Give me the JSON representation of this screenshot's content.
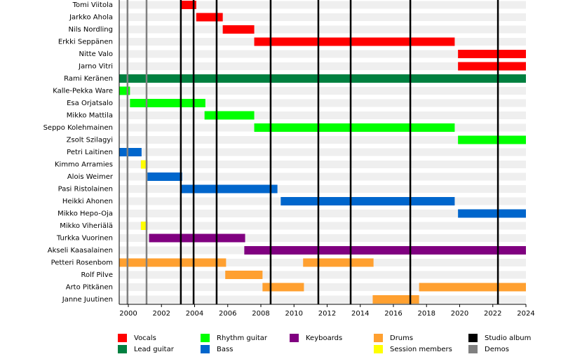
{
  "chart_data": {
    "type": "timeline",
    "categories": [
      "Tomi Viitola",
      "Jarkko Ahola",
      "Nils Nordling",
      "Erkki Seppänen",
      "Nitte Valo",
      "Jarno Vitri",
      "Rami Keränen",
      "Kalle-Pekka Ware",
      "Esa Orjatsalo",
      "Mikko Mattila",
      "Seppo Kolehmainen",
      "Zsolt Szilagyi",
      "Petri Laitinen",
      "Kimmo Arramies",
      "Alois Weimer",
      "Pasi Ristolainen",
      "Heikki Ahonen",
      "Mikko Hepo-Oja",
      "Mikko Viheriälä",
      "Turkka Vuorinen",
      "Akseli Kaasalainen",
      "Petteri Rosenbom",
      "Rolf Pilve",
      "Arto Pitkänen",
      "Janne Juutinen"
    ],
    "series": [
      {
        "name": "Vocals",
        "color": "#ff0000",
        "values": [
          [
            [
              2003.2,
              2004.1
            ]
          ],
          [
            [
              2004.1,
              2005.7
            ]
          ],
          [
            [
              2005.7,
              2007.6
            ]
          ],
          [
            [
              2007.6,
              2019.7
            ]
          ],
          [
            [
              2019.9,
              2024
            ]
          ],
          [
            [
              2019.9,
              2024
            ]
          ],
          [
            [
              1999.45,
              2003.2
            ]
          ],
          null,
          null,
          null,
          null,
          null,
          null,
          null,
          null,
          null,
          null,
          null,
          null,
          null,
          null,
          null,
          null,
          null,
          null
        ]
      },
      {
        "name": "Lead guitar",
        "color": "#008040",
        "values": [
          null,
          null,
          null,
          null,
          null,
          null,
          [
            [
              1999.45,
              2024
            ]
          ],
          null,
          null,
          null,
          null,
          null,
          null,
          null,
          null,
          null,
          null,
          null,
          null,
          null,
          null,
          null,
          null,
          null,
          null
        ]
      },
      {
        "name": "Rhythm guitar",
        "color": "#00ff00",
        "values": [
          null,
          null,
          null,
          null,
          null,
          null,
          null,
          [
            [
              1999.45,
              2000.1
            ]
          ],
          [
            [
              2000.1,
              2004.65
            ]
          ],
          [
            [
              2004.6,
              2007.6
            ]
          ],
          [
            [
              2007.6,
              2019.7
            ]
          ],
          [
            [
              2019.9,
              2024
            ]
          ],
          null,
          null,
          null,
          null,
          null,
          null,
          null,
          null,
          null,
          null,
          null,
          null,
          null
        ]
      },
      {
        "name": "Bass",
        "color": "#0066cc",
        "values": [
          null,
          null,
          null,
          null,
          null,
          null,
          null,
          null,
          null,
          null,
          null,
          null,
          [
            [
              1999.45,
              2000.8
            ]
          ],
          [
            [
              2000.76,
              2001.15
            ]
          ],
          [
            [
              2001.15,
              2003.25
            ]
          ],
          [
            [
              2003.2,
              2009.0
            ]
          ],
          [
            [
              2009.2,
              2019.7
            ]
          ],
          [
            [
              2019.9,
              2024
            ]
          ],
          null,
          null,
          null,
          null,
          null,
          null,
          null
        ]
      },
      {
        "name": "Keyboards",
        "color": "#800080",
        "values": [
          null,
          null,
          null,
          null,
          null,
          null,
          null,
          null,
          null,
          null,
          null,
          null,
          null,
          null,
          null,
          null,
          null,
          null,
          [
            [
              2000.76,
              2001.15
            ]
          ],
          [
            [
              2001.25,
              2007.05
            ]
          ],
          [
            [
              2007.0,
              2024
            ]
          ],
          null,
          null,
          null,
          null
        ]
      },
      {
        "name": "Drums",
        "color": "#ffa030",
        "values": [
          null,
          null,
          null,
          null,
          null,
          null,
          null,
          null,
          null,
          null,
          null,
          null,
          null,
          null,
          null,
          null,
          null,
          null,
          null,
          null,
          null,
          [
            [
              1999.45,
              2005.9
            ],
            [
              2010.55,
              2014.8
            ]
          ],
          [
            [
              2005.85,
              2008.1
            ]
          ],
          [
            [
              2008.1,
              2010.6
            ],
            [
              2017.55,
              2024
            ]
          ],
          [
            [
              2014.75,
              2017.55
            ]
          ]
        ]
      },
      {
        "name": "Session members",
        "color": "#ffff00",
        "values": [
          null,
          null,
          null,
          null,
          null,
          null,
          null,
          null,
          null,
          null,
          null,
          null,
          null,
          [
            [
              2000.76,
              2001.15
            ]
          ],
          null,
          null,
          null,
          null,
          [
            [
              2000.76,
              2001.15
            ]
          ],
          null,
          null,
          null,
          null,
          null,
          null
        ]
      }
    ],
    "events": [
      {
        "name": "Studio album",
        "color": "#000000",
        "x": [
          2003.17,
          2003.94,
          2005.33,
          2008.59,
          2011.47,
          2013.42,
          2017.02,
          2022.31
        ]
      },
      {
        "name": "Demos",
        "color": "#808080",
        "x": [
          1999.95,
          2001.1
        ]
      }
    ],
    "xlim": [
      1999.45,
      2024
    ],
    "xticks": [
      2000,
      2002,
      2004,
      2006,
      2008,
      2010,
      2012,
      2014,
      2016,
      2018,
      2020,
      2022,
      2024
    ]
  }
}
